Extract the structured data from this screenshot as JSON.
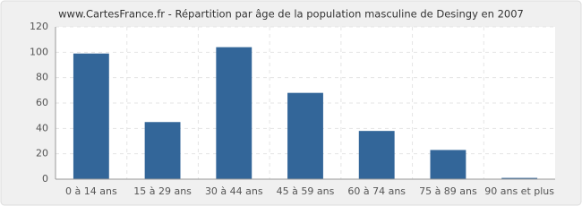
{
  "chart_data": {
    "type": "bar",
    "title": "www.CartesFrance.fr - Répartition par âge de la population masculine de Desingy en 2007",
    "categories": [
      "0 à 14 ans",
      "15 à 29 ans",
      "30 à 44 ans",
      "45 à 59 ans",
      "60 à 74 ans",
      "75 à 89 ans",
      "90 ans et plus"
    ],
    "values": [
      99,
      45,
      104,
      68,
      38,
      23,
      1
    ],
    "color": "#336699",
    "ylim": [
      0,
      120
    ],
    "yticks": [
      0,
      20,
      40,
      60,
      80,
      100,
      120
    ],
    "grid": true
  }
}
